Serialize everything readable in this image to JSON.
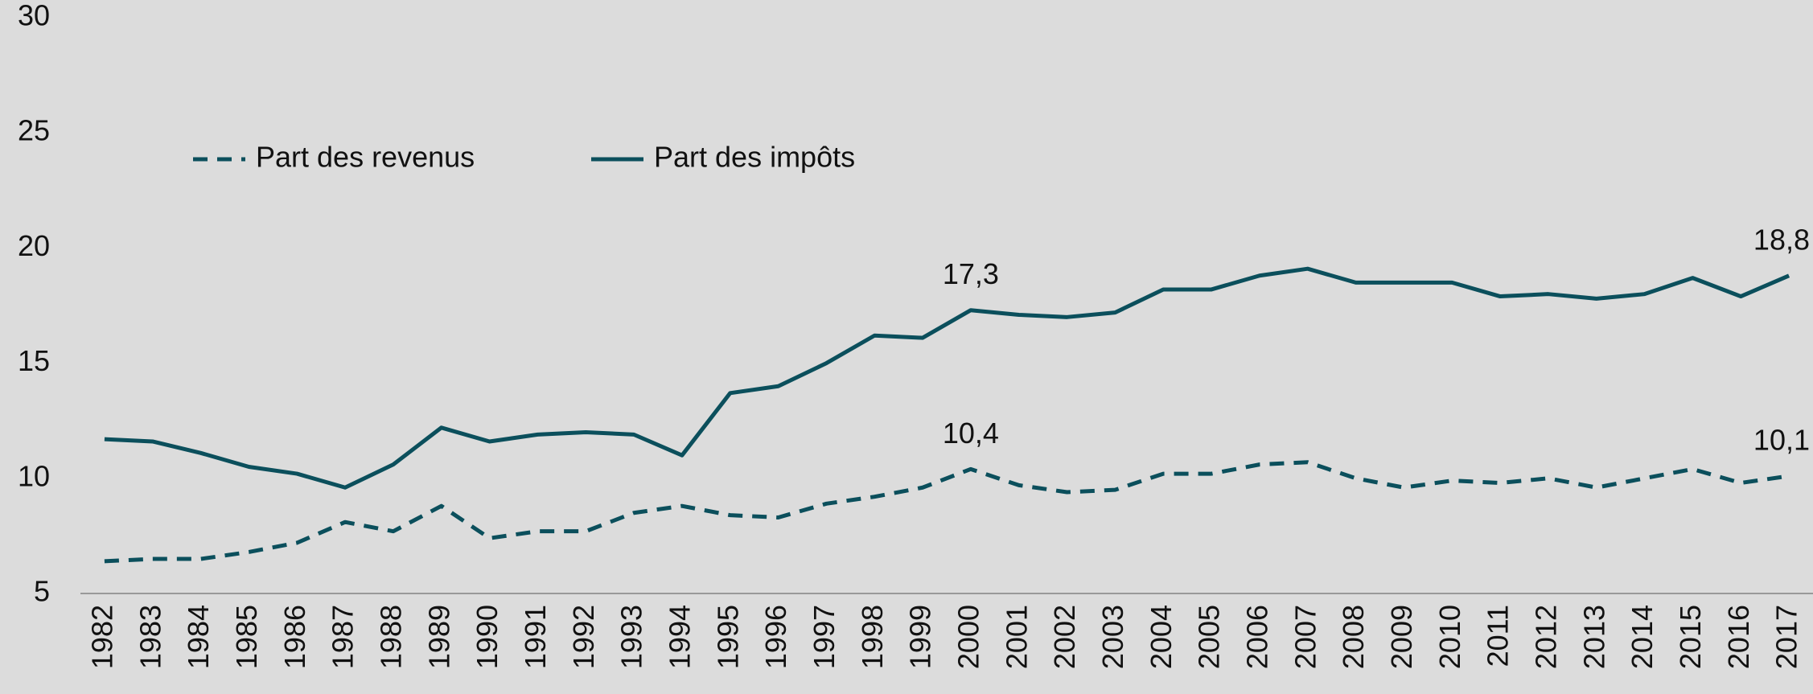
{
  "chart_data": {
    "type": "line",
    "categories": [
      "1982",
      "1983",
      "1984",
      "1985",
      "1986",
      "1987",
      "1988",
      "1989",
      "1990",
      "1991",
      "1992",
      "1993",
      "1994",
      "1995",
      "1996",
      "1997",
      "1998",
      "1999",
      "2000",
      "2001",
      "2002",
      "2003",
      "2004",
      "2005",
      "2006",
      "2007",
      "2008",
      "2009",
      "2010",
      "2011",
      "2012",
      "2013",
      "2014",
      "2015",
      "2016",
      "2017"
    ],
    "series": [
      {
        "name": "Part des revenus",
        "color": "#0b4f5c",
        "dash": true,
        "values": [
          6.4,
          6.5,
          6.5,
          6.8,
          7.2,
          8.1,
          7.7,
          8.8,
          7.4,
          7.7,
          7.7,
          8.5,
          8.8,
          8.4,
          8.3,
          8.9,
          9.2,
          9.6,
          10.4,
          9.7,
          9.4,
          9.5,
          10.2,
          10.2,
          10.6,
          10.7,
          10.0,
          9.6,
          9.9,
          9.8,
          10.0,
          9.6,
          10.0,
          10.4,
          9.8,
          10.1
        ],
        "value_labels": [
          null,
          null,
          null,
          null,
          null,
          null,
          null,
          null,
          null,
          null,
          null,
          null,
          null,
          null,
          null,
          null,
          null,
          null,
          "10,4",
          null,
          null,
          null,
          null,
          null,
          null,
          null,
          null,
          null,
          null,
          null,
          null,
          null,
          null,
          null,
          null,
          "10,1"
        ]
      },
      {
        "name": "Part des impôts",
        "color": "#0b4f5c",
        "dash": false,
        "values": [
          11.7,
          11.6,
          11.1,
          10.5,
          10.2,
          9.6,
          10.6,
          12.2,
          11.6,
          11.9,
          12.0,
          11.9,
          11.0,
          13.7,
          14.0,
          15.0,
          16.2,
          16.1,
          17.3,
          17.1,
          17.0,
          17.2,
          18.2,
          18.2,
          18.8,
          19.1,
          18.5,
          18.5,
          18.5,
          17.9,
          18.0,
          17.8,
          18.0,
          18.7,
          17.9,
          18.8
        ],
        "value_labels": [
          null,
          null,
          null,
          null,
          null,
          null,
          null,
          null,
          null,
          null,
          null,
          null,
          null,
          null,
          null,
          null,
          null,
          null,
          "17,3",
          null,
          null,
          null,
          null,
          null,
          null,
          null,
          null,
          null,
          null,
          null,
          null,
          null,
          null,
          null,
          null,
          "18,8"
        ]
      }
    ],
    "ylim": [
      5,
      30
    ],
    "yticks": [
      5,
      10,
      15,
      20,
      25,
      30
    ],
    "grid": false
  }
}
